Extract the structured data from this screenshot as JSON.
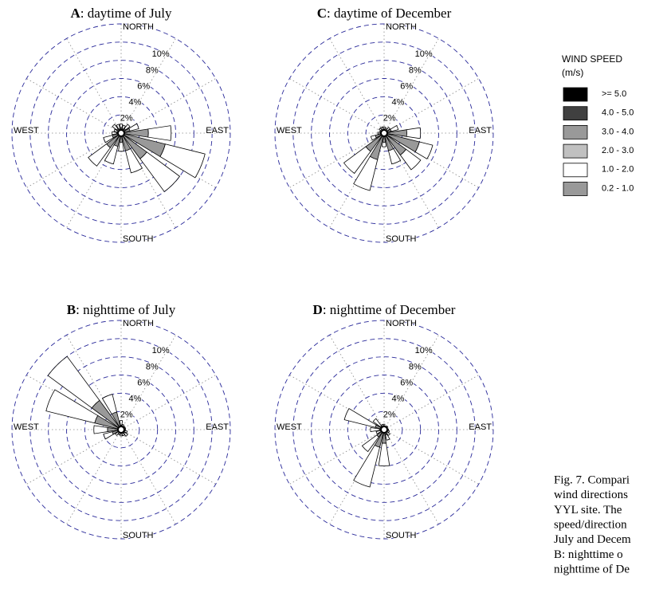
{
  "chart_data": [
    {
      "type": "windrose",
      "panel": "A",
      "title": ": daytime of July",
      "directions": [
        "NORTH",
        "EAST",
        "SOUTH",
        "WEST"
      ],
      "rlim": [
        0,
        12
      ],
      "rticks": [
        {
          "value": 2,
          "label": "2%"
        },
        {
          "value": 4,
          "label": "4%"
        },
        {
          "value": 6,
          "label": "6%"
        },
        {
          "value": 8,
          "label": "8%"
        },
        {
          "value": 10,
          "label": "10%"
        }
      ],
      "series": [
        {
          "color": "#999999",
          "values": [
            0.6,
            0.5,
            0.6,
            1.0,
            3.0,
            5.0,
            3.5,
            2.0,
            1.0,
            1.5,
            2.0,
            1.0,
            0.5,
            0.4,
            0.6,
            0.5
          ]
        },
        {
          "color": "#ffffff",
          "values": [
            0.4,
            0.4,
            0.6,
            1.0,
            2.5,
            4.5,
            4.5,
            2.5,
            1.0,
            2.0,
            2.5,
            1.0,
            0.5,
            0.4,
            0.6,
            0.5
          ]
        }
      ]
    },
    {
      "type": "windrose",
      "panel": "C",
      "title": ": daytime of December",
      "directions": [
        "NORTH",
        "EAST",
        "SOUTH",
        "WEST"
      ],
      "rlim": [
        0,
        12
      ],
      "rticks": [
        {
          "value": 2,
          "label": "2%"
        },
        {
          "value": 4,
          "label": "4%"
        },
        {
          "value": 6,
          "label": "6%"
        },
        {
          "value": 8,
          "label": "8%"
        },
        {
          "value": 10,
          "label": "10%"
        }
      ],
      "series": [
        {
          "color": "#999999",
          "values": [
            0.4,
            0.3,
            0.4,
            0.8,
            2.5,
            4.0,
            3.0,
            2.0,
            1.0,
            3.0,
            2.5,
            1.0,
            0.4,
            0.3,
            0.4,
            0.4
          ]
        },
        {
          "color": "#ffffff",
          "values": [
            0.3,
            0.3,
            0.4,
            0.8,
            1.5,
            1.5,
            2.0,
            1.5,
            0.5,
            3.5,
            3.0,
            0.5,
            0.3,
            0.2,
            0.3,
            0.3
          ]
        }
      ]
    },
    {
      "type": "windrose",
      "panel": "B",
      "title": ": nighttime of July",
      "directions": [
        "NORTH",
        "EAST",
        "SOUTH",
        "WEST"
      ],
      "rlim": [
        0,
        12
      ],
      "rticks": [
        {
          "value": 2,
          "label": "2%"
        },
        {
          "value": 4,
          "label": "4%"
        },
        {
          "value": 6,
          "label": "6%"
        },
        {
          "value": 8,
          "label": "8%"
        },
        {
          "value": 10,
          "label": "10%"
        }
      ],
      "series": [
        {
          "color": "#999999",
          "values": [
            0.5,
            0.3,
            0.3,
            0.3,
            0.3,
            0.4,
            0.5,
            0.4,
            0.4,
            0.3,
            0.4,
            1.0,
            1.5,
            3.0,
            4.0,
            2.0
          ]
        },
        {
          "color": "#ffffff",
          "values": [
            0.5,
            0.3,
            0.2,
            0.2,
            0.2,
            0.3,
            0.4,
            0.3,
            0.3,
            0.3,
            0.4,
            1.0,
            1.5,
            5.5,
            6.0,
            2.0
          ]
        }
      ]
    },
    {
      "type": "windrose",
      "panel": "D",
      "title": ": nighttime of December",
      "directions": [
        "NORTH",
        "EAST",
        "SOUTH",
        "WEST"
      ],
      "rlim": [
        0,
        12
      ],
      "rticks": [
        {
          "value": 2,
          "label": "2%"
        },
        {
          "value": 4,
          "label": "4%"
        },
        {
          "value": 6,
          "label": "6%"
        },
        {
          "value": 8,
          "label": "8%"
        },
        {
          "value": 10,
          "label": "10%"
        }
      ],
      "series": [
        {
          "color": "#999999",
          "values": [
            0.3,
            0.2,
            0.3,
            0.2,
            0.3,
            0.3,
            0.4,
            0.6,
            1.5,
            2.0,
            1.0,
            0.4,
            0.5,
            1.0,
            0.5,
            0.3
          ]
        },
        {
          "color": "#ffffff",
          "values": [
            0.3,
            0.2,
            0.2,
            0.2,
            0.2,
            0.3,
            0.4,
            0.6,
            2.5,
            4.5,
            2.0,
            0.5,
            1.0,
            3.5,
            1.0,
            0.3
          ]
        }
      ]
    }
  ],
  "legend": {
    "title": "WIND SPEED",
    "unit": "(m/s)",
    "items": [
      {
        "label": ">= 5.0",
        "color": "#000000"
      },
      {
        "label": "4.0 - 5.0",
        "color": "#404040"
      },
      {
        "label": "3.0 - 4.0",
        "color": "#999999"
      },
      {
        "label": "2.0 - 3.0",
        "color": "#c0c0c0"
      },
      {
        "label": "1.0 - 2.0",
        "color": "#ffffff"
      },
      {
        "label": "0.2 - 1.0",
        "color": "#999999"
      }
    ]
  },
  "caption": [
    "Fig. 7. Compari",
    "wind directions",
    "YYL site. The",
    "speed/direction",
    "July and Decem",
    "B: nighttime o",
    "nighttime of De"
  ]
}
